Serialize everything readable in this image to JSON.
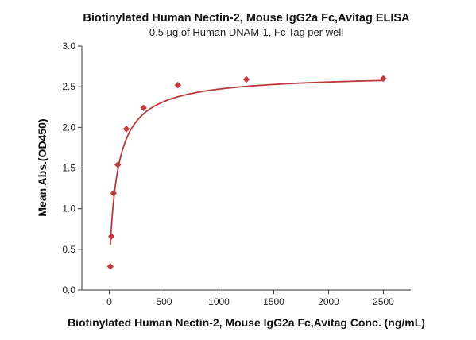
{
  "chart_data": {
    "type": "scatter",
    "title": "Biotinylated Human Nectin-2, Mouse IgG2a Fc,Avitag ELISA",
    "subtitle": "0.5 µg of Human DNAM-1, Fc Tag per well",
    "xlabel": "Biotinylated Human Nectin-2, Mouse IgG2a Fc,Avitag Conc. (ng/mL)",
    "ylabel": "Mean Abs.(OD450)",
    "xlim": [
      -250,
      2750
    ],
    "ylim": [
      0.0,
      3.0
    ],
    "xticks": [
      0,
      500,
      1000,
      1500,
      2000,
      2500
    ],
    "yticks": [
      "0.0",
      "0.5",
      "1.0",
      "1.5",
      "2.0",
      "2.5",
      "3.0"
    ],
    "grid": false,
    "series": [
      {
        "color": "#c0393b",
        "marker": "diamond",
        "fit_curve": true,
        "x": [
          9.8,
          19.5,
          39,
          78,
          156,
          312.5,
          625,
          1250,
          2500
        ],
        "y": [
          0.29,
          0.66,
          1.19,
          1.54,
          1.98,
          2.24,
          2.52,
          2.59,
          2.6
        ]
      }
    ]
  }
}
